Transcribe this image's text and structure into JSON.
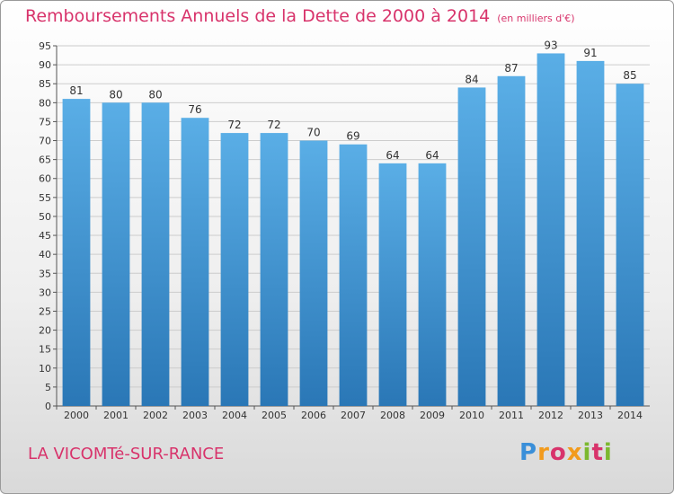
{
  "header": {
    "title": "Remboursements Annuels de la Dette de 2000 à 2014",
    "unit": "(en milliers d'€)"
  },
  "footer": {
    "city": "LA VICOMTé-SUR-RANCE",
    "logo_letters": [
      "P",
      "r",
      "o",
      "x",
      "i",
      "t",
      "i"
    ]
  },
  "colors": {
    "title": "#d8336b",
    "bar_top": "#5aaee6",
    "bar_bottom": "#2a77b6",
    "grid": "#cccccc"
  },
  "chart_data": {
    "type": "bar",
    "title": "Remboursements Annuels de la Dette de 2000 à 2014",
    "xlabel": "",
    "ylabel": "",
    "categories": [
      "2000",
      "2001",
      "2002",
      "2003",
      "2004",
      "2005",
      "2006",
      "2007",
      "2008",
      "2009",
      "2010",
      "2011",
      "2012",
      "2013",
      "2014"
    ],
    "values": [
      81,
      80,
      80,
      76,
      72,
      72,
      70,
      69,
      64,
      64,
      84,
      87,
      93,
      91,
      85
    ],
    "ylim": [
      0,
      95
    ],
    "yticks": [
      0,
      5,
      10,
      15,
      20,
      25,
      30,
      35,
      40,
      45,
      50,
      55,
      60,
      65,
      70,
      75,
      80,
      85,
      90,
      95
    ],
    "grid": true,
    "legend": "none"
  }
}
